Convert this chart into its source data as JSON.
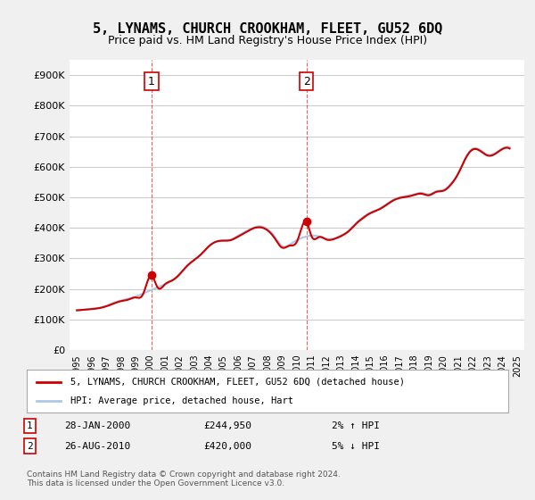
{
  "title": "5, LYNAMS, CHURCH CROOKHAM, FLEET, GU52 6DQ",
  "subtitle": "Price paid vs. HM Land Registry's House Price Index (HPI)",
  "ylabel": "",
  "ylim": [
    0,
    950000
  ],
  "yticks": [
    0,
    100000,
    200000,
    300000,
    400000,
    500000,
    600000,
    700000,
    800000,
    900000
  ],
  "ytick_labels": [
    "£0",
    "£100K",
    "£200K",
    "£300K",
    "£400K",
    "£500K",
    "£600K",
    "£700K",
    "£800K",
    "£900K"
  ],
  "bg_color": "#f0f0f0",
  "plot_bg_color": "#ffffff",
  "grid_color": "#cccccc",
  "sale1_date": "2000-01-28",
  "sale1_price": 244950,
  "sale1_label": "1",
  "sale2_date": "2010-08-26",
  "sale2_price": 420000,
  "sale2_label": "2",
  "house_color": "#cc0000",
  "hpi_color": "#aac8e8",
  "legend_house": "5, LYNAMS, CHURCH CROOKHAM, FLEET, GU52 6DQ (detached house)",
  "legend_hpi": "HPI: Average price, detached house, Hart",
  "annotation1_date": "28-JAN-2000",
  "annotation1_price": "£244,950",
  "annotation1_hpi": "2% ↑ HPI",
  "annotation2_date": "26-AUG-2010",
  "annotation2_price": "£420,000",
  "annotation2_hpi": "5% ↓ HPI",
  "footer": "Contains HM Land Registry data © Crown copyright and database right 2024.\nThis data is licensed under the Open Government Licence v3.0.",
  "hpi_data": {
    "years": [
      1995,
      1995.5,
      1996,
      1996.5,
      1997,
      1997.5,
      1998,
      1998.5,
      1999,
      1999.5,
      2000,
      2000.5,
      2001,
      2001.5,
      2002,
      2002.5,
      2003,
      2003.5,
      2004,
      2004.5,
      2005,
      2005.5,
      2006,
      2006.5,
      2007,
      2007.5,
      2008,
      2008.5,
      2009,
      2009.5,
      2010,
      2010.5,
      2011,
      2011.5,
      2012,
      2012.5,
      2013,
      2013.5,
      2014,
      2014.5,
      2015,
      2015.5,
      2016,
      2016.5,
      2017,
      2017.5,
      2018,
      2018.5,
      2019,
      2019.5,
      2020,
      2020.5,
      2021,
      2021.5,
      2022,
      2022.5,
      2023,
      2023.5,
      2024,
      2024.5
    ],
    "values": [
      130000,
      132000,
      135000,
      138000,
      145000,
      155000,
      162000,
      168000,
      175000,
      185000,
      195000,
      205000,
      215000,
      228000,
      248000,
      275000,
      295000,
      315000,
      340000,
      355000,
      360000,
      362000,
      375000,
      388000,
      400000,
      405000,
      395000,
      370000,
      340000,
      345000,
      360000,
      370000,
      375000,
      372000,
      365000,
      365000,
      375000,
      390000,
      415000,
      435000,
      450000,
      460000,
      475000,
      490000,
      500000,
      505000,
      510000,
      515000,
      510000,
      520000,
      525000,
      545000,
      580000,
      630000,
      660000,
      655000,
      640000,
      645000,
      660000,
      665000
    ],
    "smooth": true
  },
  "house_data": {
    "x": [
      1995.0,
      1995.5,
      1996.0,
      1996.5,
      1997.0,
      1997.5,
      1998.0,
      1998.5,
      1999.0,
      1999.5,
      2000.082,
      2000.5,
      2001.0,
      2001.5,
      2002.0,
      2002.5,
      2003.0,
      2003.5,
      2004.0,
      2004.5,
      2005.0,
      2005.5,
      2006.0,
      2006.5,
      2007.0,
      2007.5,
      2008.0,
      2008.5,
      2009.0,
      2009.5,
      2010.0,
      2010.647,
      2011.0,
      2011.5,
      2012.0,
      2012.5,
      2013.0,
      2013.5,
      2014.0,
      2014.5,
      2015.0,
      2015.5,
      2016.0,
      2016.5,
      2017.0,
      2017.5,
      2018.0,
      2018.5,
      2019.0,
      2019.5,
      2020.0,
      2020.5,
      2021.0,
      2021.5,
      2022.0,
      2022.5,
      2023.0,
      2023.5,
      2024.0,
      2024.5
    ],
    "values": [
      130000,
      132000,
      134000,
      137000,
      143000,
      152000,
      160000,
      165000,
      172000,
      182000,
      244950,
      205000,
      215000,
      228000,
      248000,
      275000,
      295000,
      315000,
      340000,
      355000,
      358000,
      360000,
      372000,
      385000,
      398000,
      402000,
      392000,
      365000,
      335000,
      342000,
      355000,
      420000,
      372000,
      370000,
      362000,
      363000,
      373000,
      388000,
      412000,
      432000,
      448000,
      458000,
      472000,
      488000,
      498000,
      502000,
      508000,
      512000,
      507000,
      518000,
      522000,
      542000,
      578000,
      628000,
      657000,
      652000,
      637000,
      642000,
      658000,
      660000
    ]
  }
}
